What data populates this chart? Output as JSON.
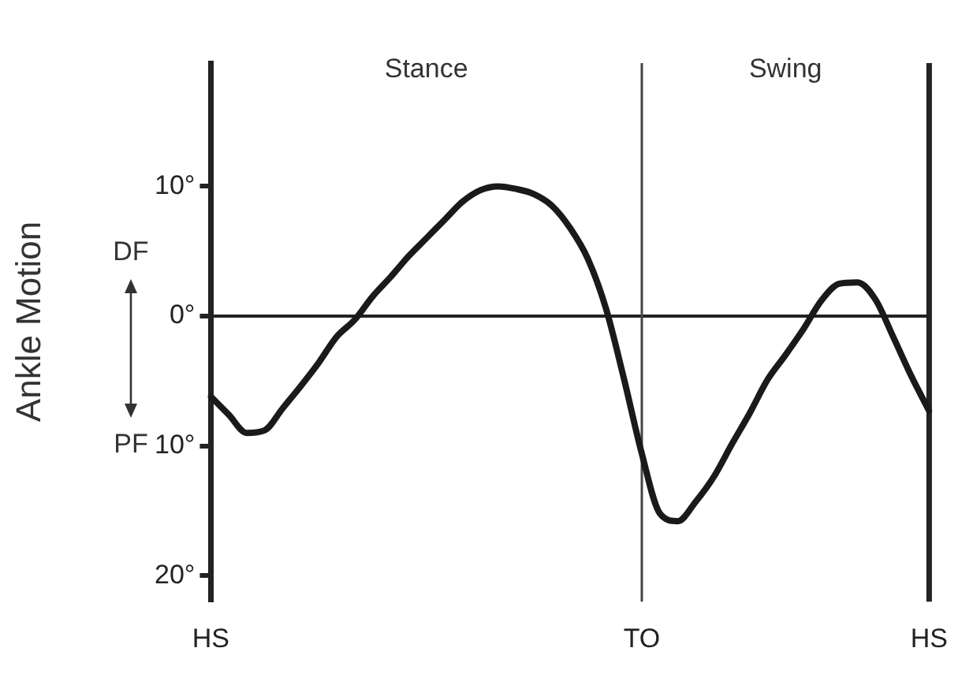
{
  "chart_data": {
    "type": "line",
    "ylabel": "Ankle Motion",
    "annotations": [
      "Stance",
      "Swing",
      "DF",
      "PF"
    ],
    "categories": [
      "HS",
      null,
      null,
      null,
      null,
      null,
      null,
      null,
      null,
      null,
      null,
      null,
      null,
      null,
      null,
      null,
      null,
      null,
      null,
      null,
      null,
      null,
      null,
      null,
      "TO",
      null,
      null,
      null,
      null,
      null,
      null,
      null,
      null,
      null,
      null,
      null,
      null,
      null,
      null,
      null,
      "HS"
    ],
    "series": [
      {
        "color": "#1a1a1a",
        "values": [
          -6.2,
          -7.6,
          -9.0,
          -8.8,
          -7.1,
          -5.4,
          -3.6,
          -1.6,
          -0.3,
          1.5,
          3.0,
          4.6,
          6.0,
          7.4,
          8.8,
          9.7,
          10.0,
          9.8,
          9.4,
          8.5,
          6.8,
          4.4,
          0.6,
          -4.8,
          -10.6,
          -15.2,
          -15.8,
          -14.3,
          -12.4,
          -9.9,
          -7.5,
          -4.9,
          -3.0,
          -1.0,
          1.2,
          2.5,
          2.6,
          1.3,
          -1.6,
          -4.6,
          -7.3
        ]
      }
    ],
    "ylim": [
      -22,
      19.5
    ],
    "yticks": [
      {
        "value": 10,
        "label": "10°"
      },
      {
        "value": 0,
        "label": "0°"
      },
      {
        "value": -10,
        "label": "10°"
      },
      {
        "value": -20,
        "label": "20°"
      }
    ],
    "ref_lines": [
      {
        "axis": "y",
        "value": 0,
        "color": "#222222"
      },
      {
        "axis": "x",
        "value": "TO",
        "color": "#444444"
      }
    ],
    "grid": false,
    "legend": false,
    "marker": "none",
    "line_style": "solid"
  }
}
